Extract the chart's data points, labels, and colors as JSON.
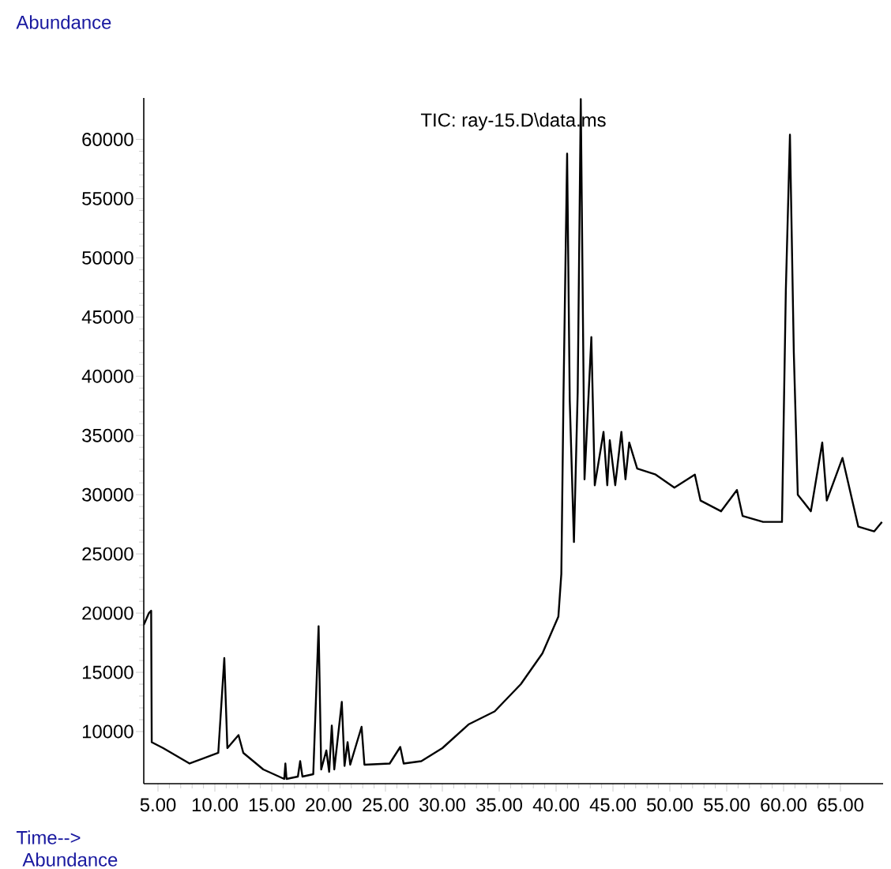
{
  "chart_data": {
    "type": "line",
    "title": "TIC: ray-15.D\\data.ms",
    "xlabel": "Time-->",
    "ylabel": "Abundance",
    "annotations": [
      "Abundance"
    ],
    "color": "#000000",
    "x": [
      3.75,
      4.2,
      4.4,
      4.45,
      5.46,
      7.78,
      10.3,
      10.83,
      11.1,
      12.08,
      12.5,
      14.26,
      16.1,
      16.2,
      16.3,
      17.3,
      17.5,
      17.7,
      18.65,
      19.12,
      19.35,
      19.8,
      20.05,
      20.28,
      20.5,
      21.16,
      21.4,
      21.67,
      21.9,
      22.9,
      23.15,
      25.37,
      26.3,
      26.6,
      28.15,
      30,
      32.3,
      34.6,
      36.9,
      38.8,
      40.2,
      40.46,
      40.65,
      40.97,
      41.2,
      41.57,
      41.9,
      42.17,
      42.5,
      43.1,
      43.4,
      44.17,
      44.5,
      44.72,
      45.2,
      45.74,
      46.1,
      46.43,
      47.13,
      48.75,
      50.4,
      52.2,
      52.7,
      54.5,
      55.9,
      56.4,
      58.2,
      59.86,
      60.2,
      60.56,
      60.9,
      61.25,
      62.4,
      63.4,
      63.8,
      65.18,
      66.57,
      67.96,
      68.65
    ],
    "values": [
      19000,
      20000,
      20200,
      9100,
      8600,
      7300,
      8200,
      16200,
      8600,
      9700,
      8200,
      6800,
      6000,
      7300,
      6000,
      6200,
      7500,
      6200,
      6400,
      18900,
      6800,
      8400,
      6600,
      10500,
      6800,
      12500,
      7100,
      9100,
      7200,
      10400,
      7200,
      7300,
      8700,
      7300,
      7500,
      8600,
      10600,
      11700,
      14000,
      16600,
      19700,
      23300,
      38400,
      58800,
      38000,
      26000,
      38700,
      63400,
      31300,
      43300,
      30800,
      35300,
      30800,
      34600,
      30800,
      35300,
      31300,
      34400,
      32200,
      31700,
      30600,
      31700,
      29500,
      28600,
      30400,
      28200,
      27700,
      27700,
      47300,
      60400,
      42000,
      30000,
      28600,
      34400,
      29500,
      33100,
      27300,
      26900,
      27700
    ],
    "xlim": [
      3.75,
      68.75
    ],
    "ylim": [
      5600,
      63500
    ],
    "xticks": [
      {
        "value": 5,
        "label": "5.00"
      },
      {
        "value": 10,
        "label": "10.00"
      },
      {
        "value": 15,
        "label": "15.00"
      },
      {
        "value": 20,
        "label": "20.00"
      },
      {
        "value": 25,
        "label": "25.00"
      },
      {
        "value": 30,
        "label": "30.00"
      },
      {
        "value": 35,
        "label": "35.00"
      },
      {
        "value": 40,
        "label": "40.00"
      },
      {
        "value": 45,
        "label": "45.00"
      },
      {
        "value": 50,
        "label": "50.00"
      },
      {
        "value": 55,
        "label": "55.00"
      },
      {
        "value": 60,
        "label": "60.00"
      },
      {
        "value": 65,
        "label": "65.00"
      }
    ],
    "yticks": [
      10000,
      15000,
      20000,
      25000,
      30000,
      35000,
      40000,
      45000,
      50000,
      55000,
      60000
    ]
  }
}
